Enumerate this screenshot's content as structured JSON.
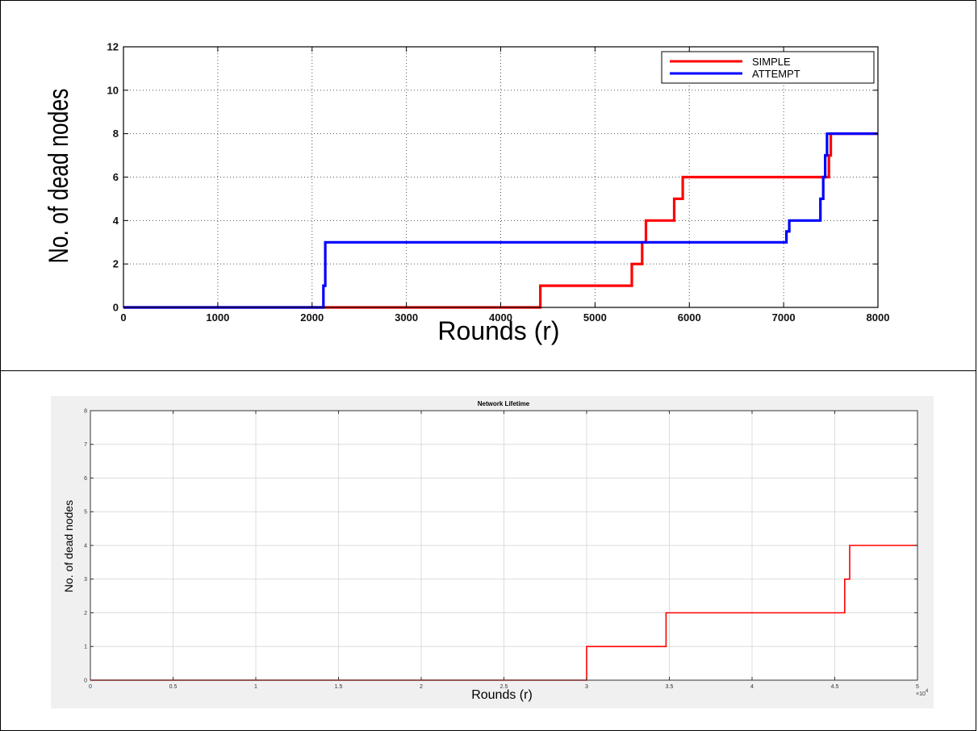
{
  "chart_data": [
    {
      "type": "line",
      "title": "",
      "xlabel": "Rounds (r)",
      "ylabel": "No. of dead nodes",
      "xlim": [
        0,
        8000
      ],
      "ylim": [
        0,
        12
      ],
      "x_ticks": [
        "0",
        "1000",
        "2000",
        "3000",
        "4000",
        "5000",
        "6000",
        "7000",
        "8000"
      ],
      "y_ticks": [
        "0",
        "2",
        "4",
        "6",
        "8",
        "10",
        "12"
      ],
      "grid": true,
      "legend_position": "top-right",
      "series": [
        {
          "name": "SIMPLE",
          "color": "#ff0000",
          "x": [
            0,
            4420,
            4420,
            5390,
            5390,
            5500,
            5500,
            5540,
            5540,
            5840,
            5840,
            5930,
            5930,
            7480,
            7480,
            7500,
            7500,
            8000
          ],
          "y": [
            0,
            0,
            1,
            1,
            2,
            2,
            3,
            3,
            4,
            4,
            5,
            5,
            6,
            6,
            7,
            7,
            8,
            8
          ]
        },
        {
          "name": "ATTEMPT",
          "color": "#0000ff",
          "x": [
            0,
            2120,
            2120,
            2140,
            2140,
            7030,
            7030,
            7060,
            7060,
            7390,
            7390,
            7420,
            7420,
            7440,
            7440,
            7460,
            7460,
            8000
          ],
          "y": [
            0,
            0,
            1,
            1,
            3,
            3,
            3.5,
            3.5,
            4,
            4,
            5,
            5,
            6,
            6,
            7,
            7,
            8,
            8
          ]
        }
      ]
    },
    {
      "type": "line",
      "title": "Network Lifetime",
      "xlabel": "Rounds (r)",
      "ylabel": "No. of dead nodes",
      "xlim": [
        0,
        50000
      ],
      "ylim": [
        0,
        8
      ],
      "x_ticks": [
        "0",
        "0.5",
        "1",
        "1.5",
        "2",
        "2.5",
        "3",
        "3.5",
        "4",
        "4.5",
        "5"
      ],
      "y_ticks": [
        "0",
        "1",
        "2",
        "3",
        "4",
        "5",
        "6",
        "7",
        "8"
      ],
      "x_multiplier": "×10",
      "x_multiplier_exp": "4",
      "grid": true,
      "series": [
        {
          "color": "#ff0000",
          "x": [
            0,
            30000,
            30000,
            34800,
            34800,
            45600,
            45600,
            45900,
            45900,
            50000
          ],
          "y": [
            0,
            0,
            1,
            1,
            2,
            2,
            3,
            3,
            4,
            4
          ]
        }
      ]
    }
  ]
}
